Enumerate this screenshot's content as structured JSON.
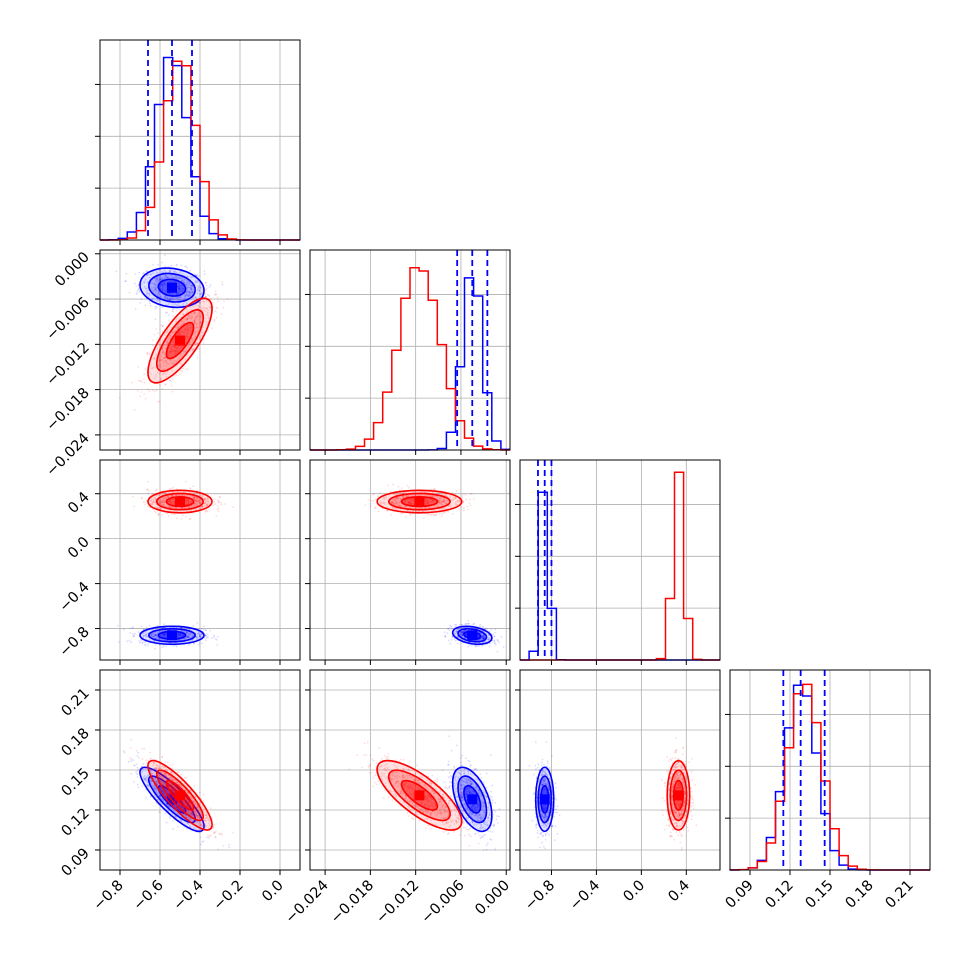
{
  "chart_data": {
    "type": "corner",
    "parameters": [
      {
        "range": [
          -0.9,
          0.1
        ],
        "ticks": [
          "-0.8",
          "-0.6",
          "-0.4",
          "-0.2",
          "0.0"
        ],
        "tick_values": [
          -0.8,
          -0.6,
          -0.4,
          -0.2,
          0.0
        ]
      },
      {
        "range": [
          -0.026,
          0.0005
        ],
        "ticks": [
          "-0.024",
          "-0.018",
          "-0.012",
          "-0.006",
          "0.000"
        ],
        "tick_values": [
          -0.024,
          -0.018,
          -0.012,
          -0.006,
          0.0
        ]
      },
      {
        "range": [
          -1.08,
          0.7
        ],
        "ticks": [
          "-0.8",
          "-0.4",
          "0.0",
          "0.4"
        ],
        "tick_values": [
          -0.8,
          -0.4,
          0.0,
          0.4
        ]
      },
      {
        "range": [
          0.075,
          0.225
        ],
        "ticks": [
          "0.09",
          "0.12",
          "0.15",
          "0.18",
          "0.21"
        ],
        "tick_values": [
          0.09,
          0.12,
          0.15,
          0.18,
          0.21
        ]
      }
    ],
    "series": [
      {
        "color": "#0000ff",
        "mean": [
          -0.54,
          -0.0045,
          -0.86,
          0.128
        ],
        "std": [
          0.08,
          0.0013,
          0.04,
          0.012
        ],
        "quantiles": [
          [
            -0.66,
            -0.54,
            -0.44
          ],
          [
            -0.0065,
            -0.0045,
            -0.0025
          ],
          [
            -0.92,
            -0.86,
            -0.8
          ],
          [
            0.115,
            0.128,
            0.146
          ]
        ],
        "hist_peak": [
          48,
          30,
          70,
          35
        ]
      },
      {
        "color": "#ff0000",
        "mean": [
          -0.5,
          -0.0115,
          0.33,
          0.131
        ],
        "std": [
          0.08,
          0.0028,
          0.05,
          0.013
        ],
        "hist_peak": [
          47,
          29,
          60,
          35
        ]
      }
    ],
    "correlations": [
      {
        "pair": [
          1,
          0
        ],
        "blue": -0.15,
        "red": 0.75
      },
      {
        "pair": [
          2,
          0
        ],
        "blue": 0.0,
        "red": 0.0
      },
      {
        "pair": [
          2,
          1
        ],
        "blue": -0.3,
        "red": 0.0
      },
      {
        "pair": [
          3,
          0
        ],
        "blue": -0.85,
        "red": -0.85
      },
      {
        "pair": [
          3,
          1
        ],
        "blue": -0.5,
        "red": -0.75
      },
      {
        "pair": [
          3,
          2
        ],
        "blue": 0.0,
        "red": 0.0
      }
    ]
  }
}
